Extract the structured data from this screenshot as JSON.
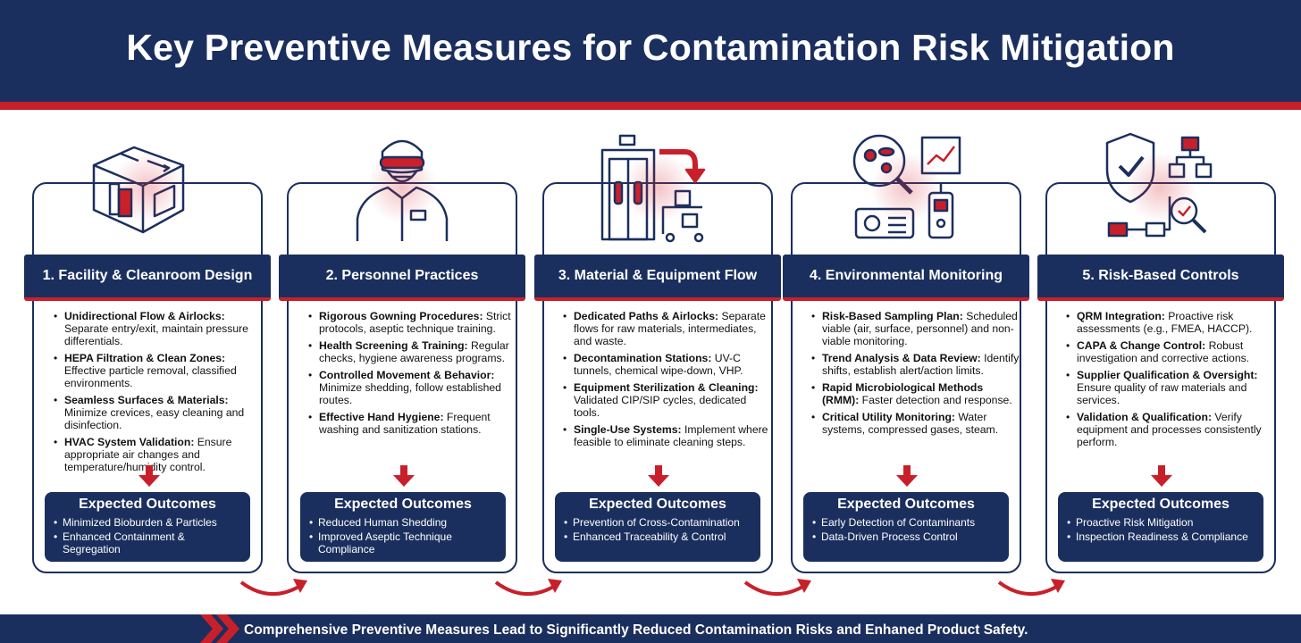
{
  "title": "Key Preventive Measures for Contamination Risk Mitigation",
  "colors": {
    "navy": "#1b2f5e",
    "red": "#c8202b"
  },
  "columns": [
    {
      "icon": "cleanroom-building-icon",
      "heading": "1. Facility & Cleanroom Design",
      "items": [
        {
          "bold": "Unidirectional Flow & Airlocks:",
          "text": " Separate entry/exit, maintain pressure differentials."
        },
        {
          "bold": "HEPA Filtration & Clean Zones:",
          "text": " Effective particle removal, classified environments."
        },
        {
          "bold": "Seamless Surfaces & Materials:",
          "text": " Minimize crevices, easy cleaning and disinfection."
        },
        {
          "bold": "HVAC System Validation:",
          "text": " Ensure appropriate air changes and temperature/humidity control."
        }
      ],
      "outcome_title": "Expected Outcomes",
      "outcomes": [
        "Minimized Bioburden & Particles",
        "Enhanced Containment & Segregation"
      ]
    },
    {
      "icon": "gowned-person-icon",
      "heading": "2. Personnel Practices",
      "items": [
        {
          "bold": "Rigorous Gowning Procedures:",
          "text": " Strict protocols, aseptic technique training."
        },
        {
          "bold": "Health Screening & Training:",
          "text": " Regular checks, hygiene awareness programs."
        },
        {
          "bold": "Controlled Movement & Behavior:",
          "text": " Minimize shedding, follow established routes."
        },
        {
          "bold": "Effective Hand Hygiene:",
          "text": " Frequent washing and sanitization stations."
        }
      ],
      "outcome_title": "Expected Outcomes",
      "outcomes": [
        "Reduced Human Shedding",
        "Improved Aseptic Technique Compliance"
      ]
    },
    {
      "icon": "material-passthrough-icon",
      "heading": "3. Material & Equipment Flow",
      "items": [
        {
          "bold": "Dedicated Paths & Airlocks:",
          "text": " Separate flows for raw materials, intermediates, and waste."
        },
        {
          "bold": "Decontamination Stations:",
          "text": " UV-C tunnels, chemical wipe-down, VHP."
        },
        {
          "bold": "Equipment Sterilization & Cleaning:",
          "text": " Validated CIP/SIP cycles, dedicated tools."
        },
        {
          "bold": "Single-Use Systems:",
          "text": " Implement where feasible to eliminate cleaning steps."
        }
      ],
      "outcome_title": "Expected Outcomes",
      "outcomes": [
        "Prevention of Cross-Contamination",
        "Enhanced Traceability & Control"
      ]
    },
    {
      "icon": "environmental-monitoring-icon",
      "heading": "4. Environmental Monitoring",
      "items": [
        {
          "bold": "Risk-Based Sampling Plan:",
          "text": " Scheduled viable (air, surface, personnel) and non-viable monitoring."
        },
        {
          "bold": "Trend Analysis & Data Review:",
          "text": " Identify shifts, establish alert/action limits."
        },
        {
          "bold": "Rapid Microbiological Methods (RMM):",
          "text": " Faster detection and response."
        },
        {
          "bold": "Critical Utility Monitoring:",
          "text": " Water systems, compressed gases, steam."
        }
      ],
      "outcome_title": "Expected Outcomes",
      "outcomes": [
        "Early Detection of Contaminants",
        "Data-Driven Process Control"
      ]
    },
    {
      "icon": "shield-flowchart-icon",
      "heading": "5. Risk-Based Controls",
      "items": [
        {
          "bold": "QRM Integration:",
          "text": " Proactive risk assessments (e.g., FMEA, HACCP)."
        },
        {
          "bold": "CAPA & Change Control:",
          "text": " Robust investigation and corrective actions."
        },
        {
          "bold": "Supplier Qualification & Oversight:",
          "text": " Ensure quality of raw materials and services."
        },
        {
          "bold": "Validation & Qualification:",
          "text": " Verify equipment and processes consistently perform."
        }
      ],
      "outcome_title": "Expected Outcomes",
      "outcomes": [
        "Proactive Risk Mitigation",
        "Inspection Readiness & Compliance"
      ]
    }
  ],
  "footer": "Comprehensive Preventive Measures Lead to Significantly Reduced Contamination Risks and Enhaned Product Safety."
}
